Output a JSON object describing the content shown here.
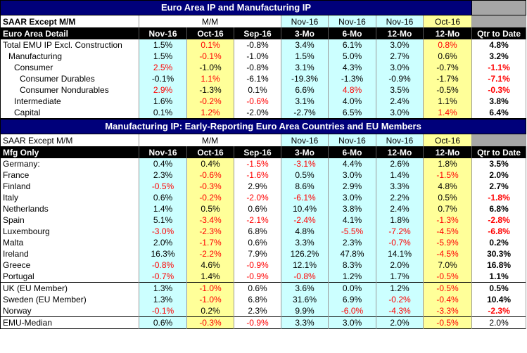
{
  "top": {
    "title": "Euro Area IP and Manufacturing IP",
    "sub_left": "SAAR Except M/M",
    "sub_mm": "M/M",
    "sub_nov1": "Nov-16",
    "sub_nov2": "Nov-16",
    "sub_nov3": "Nov-16",
    "sub_oct": "Oct-16",
    "headers": [
      "Euro Area Detail",
      "Nov-16",
      "Oct-16",
      "Sep-16",
      "3-Mo",
      "6-Mo",
      "12-Mo",
      "12-Mo",
      "Qtr to Date"
    ],
    "rows": [
      {
        "label": "Total EMU IP Excl. Construction",
        "indent": 0,
        "vals": [
          "1.5%",
          "0.1%",
          "-0.8%",
          "3.4%",
          "6.1%",
          "3.0%",
          "0.8%",
          "4.8%"
        ],
        "red": [
          false,
          true,
          false,
          false,
          false,
          false,
          true,
          false
        ]
      },
      {
        "label": "Manufacturing",
        "indent": 1,
        "vals": [
          "1.5%",
          "-0.1%",
          "-1.0%",
          "1.5%",
          "5.0%",
          "2.7%",
          "0.6%",
          "3.2%"
        ],
        "red": [
          false,
          true,
          false,
          false,
          false,
          false,
          false,
          false
        ]
      },
      {
        "label": "Consumer",
        "indent": 2,
        "vals": [
          "2.5%",
          "-1.0%",
          "-0.8%",
          "3.1%",
          "4.3%",
          "3.0%",
          "-0.7%",
          "-1.1%"
        ],
        "red": [
          true,
          false,
          false,
          false,
          false,
          false,
          false,
          true
        ]
      },
      {
        "label": "Consumer Durables",
        "indent": 3,
        "vals": [
          "-0.1%",
          "1.1%",
          "-6.1%",
          "-19.3%",
          "-1.3%",
          "-0.9%",
          "-1.7%",
          "-7.1%"
        ],
        "red": [
          false,
          true,
          false,
          false,
          false,
          false,
          false,
          true
        ]
      },
      {
        "label": "Consumer Nondurables",
        "indent": 3,
        "vals": [
          "2.9%",
          "-1.3%",
          "0.1%",
          "6.6%",
          "4.8%",
          "3.5%",
          "-0.5%",
          "-0.3%"
        ],
        "red": [
          true,
          false,
          false,
          false,
          true,
          false,
          false,
          true
        ]
      },
      {
        "label": "Intermediate",
        "indent": 2,
        "vals": [
          "1.6%",
          "-0.2%",
          "-0.6%",
          "3.1%",
          "4.0%",
          "2.4%",
          "1.1%",
          "3.8%"
        ],
        "red": [
          false,
          true,
          true,
          false,
          false,
          false,
          false,
          false
        ]
      },
      {
        "label": "Capital",
        "indent": 2,
        "vals": [
          "0.1%",
          "1.2%",
          "-2.0%",
          "-2.7%",
          "6.5%",
          "3.0%",
          "1.4%",
          "6.4%"
        ],
        "red": [
          false,
          true,
          false,
          false,
          false,
          false,
          true,
          false
        ]
      }
    ]
  },
  "bottom": {
    "title": "Manufacturing IP: Early-Reporting Euro Area Countries and EU Members",
    "sub_left": "SAAR Except M/M",
    "sub_mm": "M/M",
    "sub_nov1": "Nov-16",
    "sub_nov2": "Nov-16",
    "sub_nov3": "Nov-16",
    "sub_oct": "Oct-16",
    "headers": [
      "Mfg Only",
      "Nov-16",
      "Oct-16",
      "Sep-16",
      "3-Mo",
      "6-Mo",
      "12-Mo",
      "12-Mo",
      "Qtr to Date"
    ],
    "rows": [
      {
        "label": "Germany:",
        "vals": [
          "0.4%",
          "0.4%",
          "-1.5%",
          "-3.1%",
          "4.4%",
          "2.6%",
          "1.8%",
          "3.5%"
        ],
        "red": [
          false,
          false,
          true,
          true,
          false,
          false,
          false,
          false
        ]
      },
      {
        "label": "France",
        "vals": [
          "2.3%",
          "-0.6%",
          "-1.6%",
          "0.5%",
          "3.0%",
          "1.4%",
          "-1.5%",
          "2.0%"
        ],
        "red": [
          false,
          true,
          true,
          false,
          false,
          false,
          true,
          false
        ]
      },
      {
        "label": "Finland",
        "vals": [
          "-0.5%",
          "-0.3%",
          "2.9%",
          "8.6%",
          "2.9%",
          "3.3%",
          "4.8%",
          "2.7%"
        ],
        "red": [
          true,
          true,
          false,
          false,
          false,
          false,
          false,
          false
        ]
      },
      {
        "label": "Italy",
        "vals": [
          "0.6%",
          "-0.2%",
          "-2.0%",
          "-6.1%",
          "3.0%",
          "2.2%",
          "0.5%",
          "-1.8%"
        ],
        "red": [
          false,
          true,
          true,
          true,
          false,
          false,
          false,
          true
        ]
      },
      {
        "label": "Netherlands",
        "vals": [
          "1.4%",
          "0.5%",
          "0.6%",
          "10.4%",
          "3.8%",
          "2.4%",
          "0.7%",
          "6.8%"
        ],
        "red": [
          false,
          false,
          false,
          false,
          false,
          false,
          false,
          false
        ]
      },
      {
        "label": "Spain",
        "vals": [
          "5.1%",
          "-3.4%",
          "-2.1%",
          "-2.4%",
          "4.1%",
          "1.8%",
          "-1.3%",
          "-2.8%"
        ],
        "red": [
          false,
          true,
          true,
          true,
          false,
          false,
          true,
          true
        ]
      },
      {
        "label": "Luxembourg",
        "vals": [
          "-3.0%",
          "-2.3%",
          "6.8%",
          "4.8%",
          "-5.5%",
          "-7.2%",
          "-4.5%",
          "-6.8%"
        ],
        "red": [
          true,
          true,
          false,
          false,
          true,
          true,
          true,
          true
        ]
      },
      {
        "label": "Malta",
        "vals": [
          "2.0%",
          "-1.7%",
          "0.6%",
          "3.3%",
          "2.3%",
          "-0.7%",
          "-5.9%",
          "0.2%"
        ],
        "red": [
          false,
          true,
          false,
          false,
          false,
          true,
          true,
          false
        ]
      },
      {
        "label": "Ireland",
        "vals": [
          "16.3%",
          "-2.2%",
          "7.9%",
          "126.2%",
          "47.8%",
          "14.1%",
          "-4.5%",
          "30.3%"
        ],
        "red": [
          false,
          true,
          false,
          false,
          false,
          false,
          true,
          false
        ]
      },
      {
        "label": "Greece",
        "vals": [
          "-0.8%",
          "4.6%",
          "-0.9%",
          "12.1%",
          "8.3%",
          "2.0%",
          "7.0%",
          "16.8%"
        ],
        "red": [
          true,
          false,
          true,
          false,
          false,
          false,
          false,
          false
        ]
      },
      {
        "label": "Portugal",
        "vals": [
          "-0.7%",
          "1.4%",
          "-0.9%",
          "-0.8%",
          "1.2%",
          "1.7%",
          "-0.5%",
          "1.1%"
        ],
        "red": [
          true,
          false,
          true,
          true,
          false,
          false,
          true,
          false
        ]
      },
      {
        "label": "UK (EU Member)",
        "vals": [
          "1.3%",
          "-1.0%",
          "0.6%",
          "3.6%",
          "0.0%",
          "1.2%",
          "-0.5%",
          "0.5%"
        ],
        "red": [
          false,
          true,
          false,
          false,
          false,
          false,
          true,
          false
        ],
        "top": true
      },
      {
        "label": "Sweden (EU Member)",
        "vals": [
          "1.3%",
          "-1.0%",
          "6.8%",
          "31.6%",
          "6.9%",
          "-0.2%",
          "-0.4%",
          "10.4%"
        ],
        "red": [
          false,
          true,
          false,
          false,
          false,
          true,
          true,
          false
        ]
      },
      {
        "label": "Norway",
        "vals": [
          "-0.1%",
          "0.2%",
          "2.3%",
          "9.9%",
          "-6.0%",
          "-4.3%",
          "-3.3%",
          "-2.3%"
        ],
        "red": [
          true,
          false,
          false,
          false,
          true,
          true,
          true,
          true
        ]
      },
      {
        "label": "EMU-Median",
        "vals": [
          "0.6%",
          "-0.3%",
          "-0.9%",
          "3.3%",
          "3.0%",
          "2.0%",
          "-0.5%",
          "2.0%"
        ],
        "red": [
          false,
          true,
          true,
          false,
          false,
          false,
          true,
          false
        ],
        "top": true,
        "plainqt": true
      }
    ]
  },
  "colors": {
    "header_blue": "#00007a",
    "cyan": "#ccffff",
    "yellow": "#ffff99",
    "gray": "#a6a6a6",
    "negative_red": "#ff0000"
  }
}
